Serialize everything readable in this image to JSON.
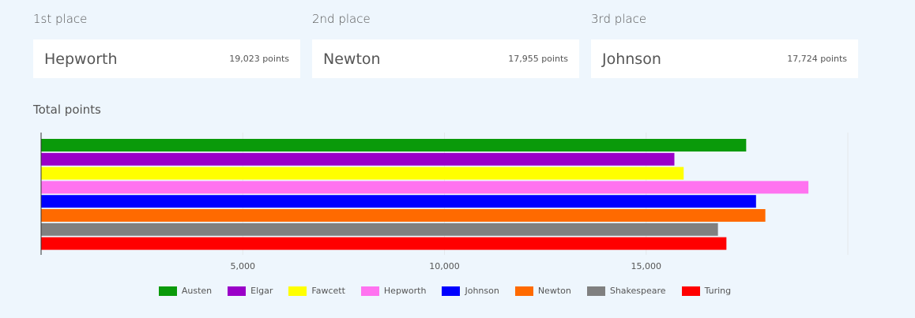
{
  "podium": [
    {
      "place": "1st place",
      "name": "Hepworth",
      "points": "19,023 points"
    },
    {
      "place": "2nd place",
      "name": "Newton",
      "points": "17,955 points"
    },
    {
      "place": "3rd place",
      "name": "Johnson",
      "points": "17,724 points"
    }
  ],
  "chart_data": {
    "type": "bar",
    "orientation": "horizontal",
    "title": "Total points",
    "series": [
      {
        "name": "Austen",
        "color": "#0a9a0a",
        "values": [
          17480
        ]
      },
      {
        "name": "Elgar",
        "color": "#9a00c8",
        "values": [
          15700
        ]
      },
      {
        "name": "Fawcett",
        "color": "#ffff00",
        "values": [
          15930
        ]
      },
      {
        "name": "Hepworth",
        "color": "#ff73f0",
        "values": [
          19023
        ]
      },
      {
        "name": "Johnson",
        "color": "#0000ff",
        "values": [
          17724
        ]
      },
      {
        "name": "Newton",
        "color": "#ff6a00",
        "values": [
          17955
        ]
      },
      {
        "name": "Shakespeare",
        "color": "#808080",
        "values": [
          16780
        ]
      },
      {
        "name": "Turing",
        "color": "#ff0000",
        "values": [
          16990
        ]
      }
    ],
    "xlim": [
      0,
      20000
    ],
    "xticks": [
      {
        "value": 5000,
        "label": "5,000"
      },
      {
        "value": 10000,
        "label": "10,000"
      },
      {
        "value": 15000,
        "label": "15,000"
      }
    ],
    "grid": true,
    "legend": "bottom"
  }
}
